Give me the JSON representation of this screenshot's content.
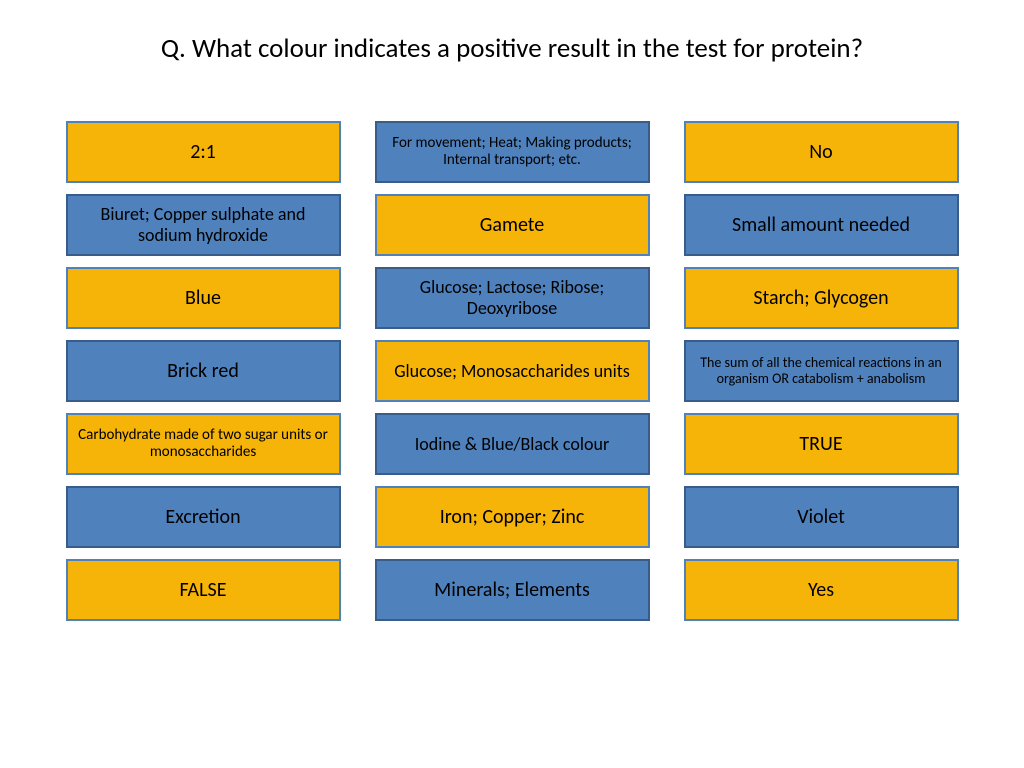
{
  "title": "Q. What colour indicates a positive result in the test for protein?",
  "columns": [
    {
      "cards": [
        {
          "label": "2:1",
          "color": "orange",
          "size": "lg"
        },
        {
          "label": "Biuret; Copper sulphate and sodium hydroxide",
          "color": "blue",
          "size": "md"
        },
        {
          "label": "Blue",
          "color": "orange",
          "size": "lg"
        },
        {
          "label": "Brick red",
          "color": "blue",
          "size": "lg"
        },
        {
          "label": "Carbohydrate made of two sugar units or monosaccharides",
          "color": "orange",
          "size": "sm"
        },
        {
          "label": "Excretion",
          "color": "blue",
          "size": "lg"
        },
        {
          "label": "FALSE",
          "color": "orange",
          "size": "lg"
        }
      ]
    },
    {
      "cards": [
        {
          "label": "For movement; Heat; Making products; Internal transport; etc.",
          "color": "blue",
          "size": "sm"
        },
        {
          "label": "Gamete",
          "color": "orange",
          "size": "lg"
        },
        {
          "label": "Glucose; Lactose; Ribose; Deoxyribose",
          "color": "blue",
          "size": "md"
        },
        {
          "label": "Glucose; Monosaccharides units",
          "color": "orange",
          "size": "md"
        },
        {
          "label": "Iodine & Blue/Black colour",
          "color": "blue",
          "size": "md"
        },
        {
          "label": "Iron; Copper; Zinc",
          "color": "orange",
          "size": "lg"
        },
        {
          "label": "Minerals; Elements",
          "color": "blue",
          "size": "lg"
        }
      ]
    },
    {
      "cards": [
        {
          "label": "No",
          "color": "orange",
          "size": "lg"
        },
        {
          "label": "Small amount needed",
          "color": "blue",
          "size": "lg"
        },
        {
          "label": "Starch; Glycogen",
          "color": "orange",
          "size": "lg"
        },
        {
          "label": "The sum of all the chemical reactions in an organism OR catabolism + anabolism",
          "color": "blue",
          "size": "xs"
        },
        {
          "label": "TRUE",
          "color": "orange",
          "size": "lg"
        },
        {
          "label": "Violet",
          "color": "blue",
          "size": "lg"
        },
        {
          "label": "Yes",
          "color": "orange",
          "size": "lg"
        }
      ]
    }
  ]
}
